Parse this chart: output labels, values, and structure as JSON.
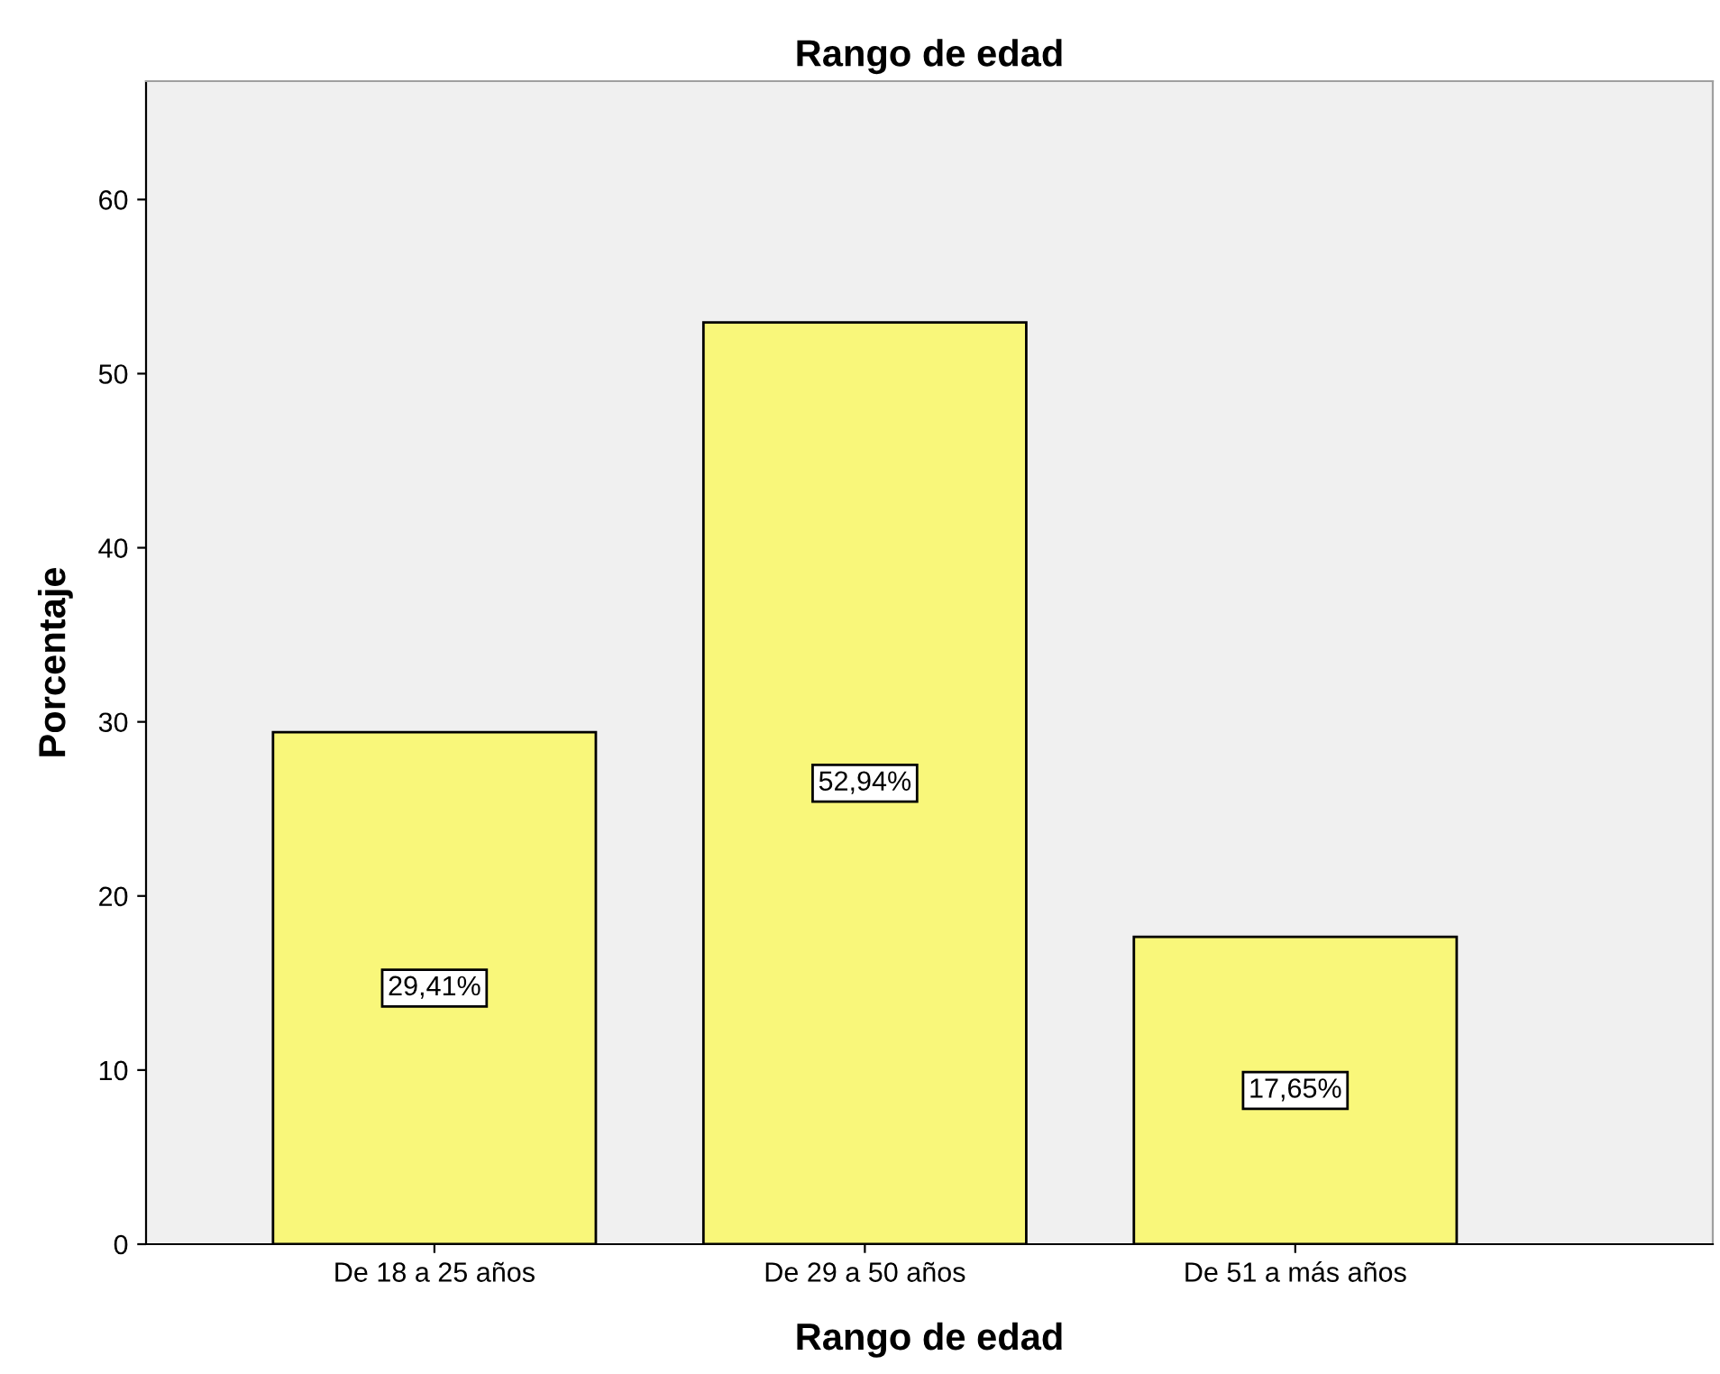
{
  "chart_data": {
    "type": "bar",
    "title": "Rango de edad",
    "xlabel": "Rango de edad",
    "ylabel": "Porcentaje",
    "categories": [
      "De 18 a 25 años",
      "De 29 a 50 años",
      "De 51 a más años"
    ],
    "values": [
      29.41,
      52.94,
      17.65
    ],
    "value_labels": [
      "29,41%",
      "52,94%",
      "17,65%"
    ],
    "color": "#f9f77a",
    "ylim": [
      0,
      66.8
    ],
    "yticks": [
      0,
      10,
      20,
      30,
      40,
      50,
      60
    ],
    "grid": false,
    "legend": false
  }
}
